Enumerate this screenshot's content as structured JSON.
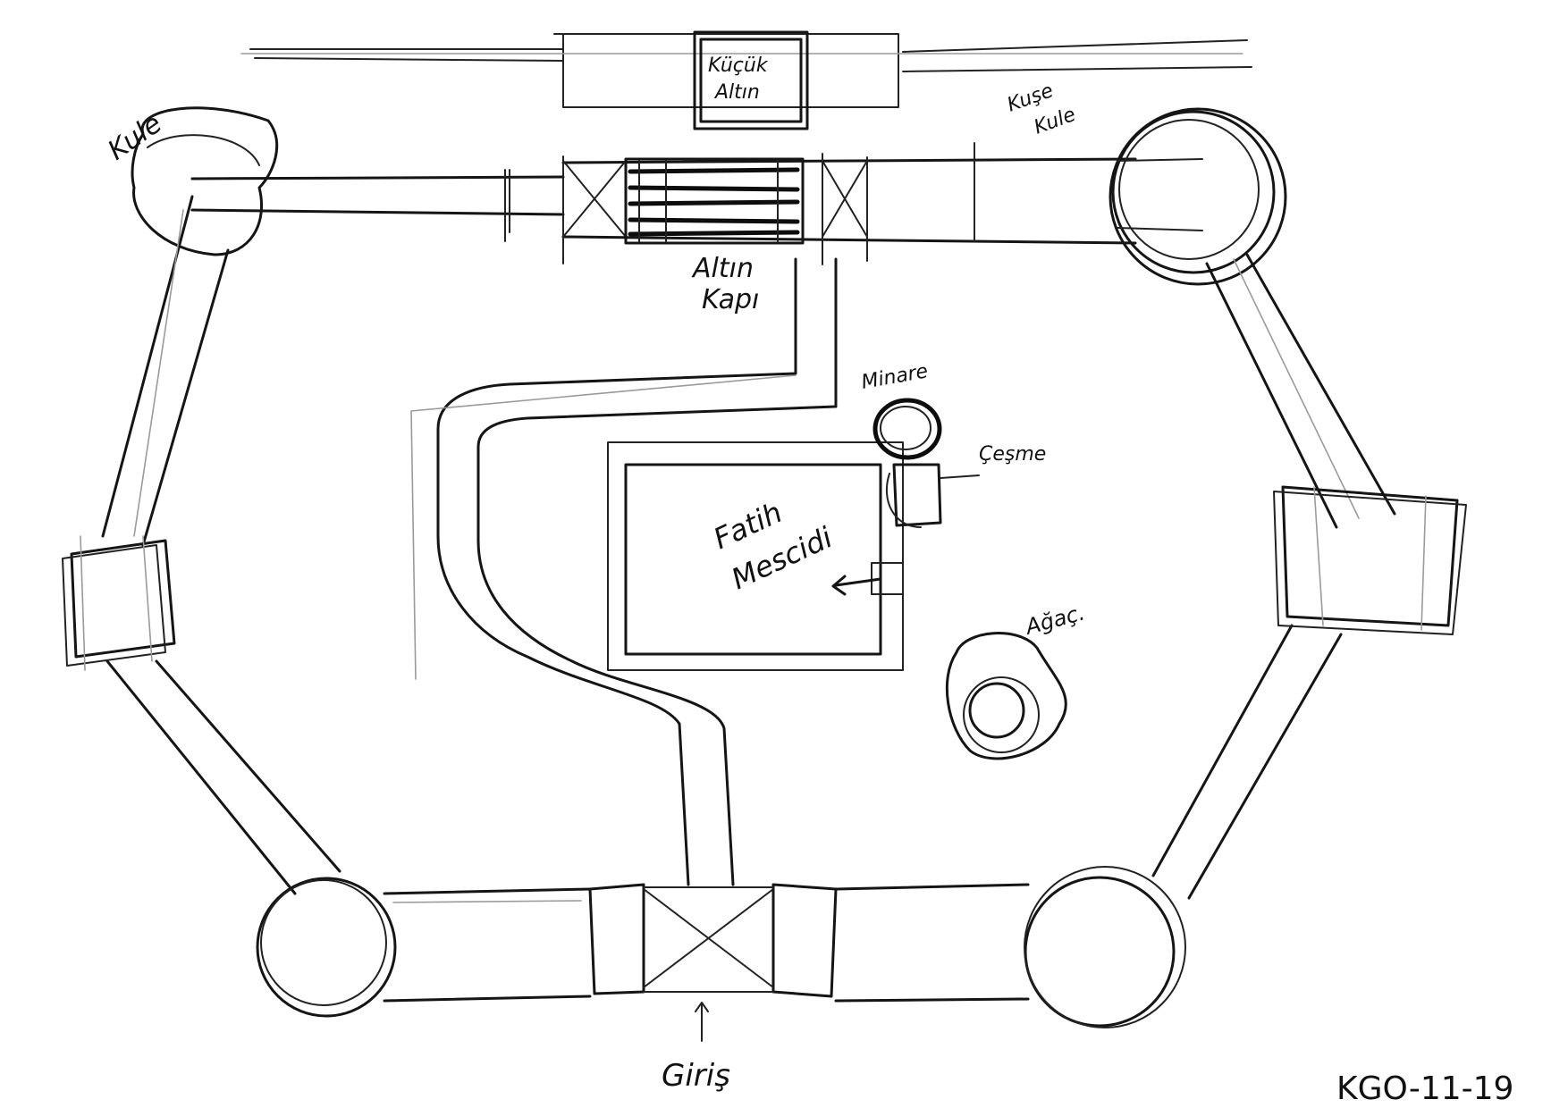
{
  "labels": {
    "kucuk_altin": [
      "Küçük",
      "Altın"
    ],
    "altin_kapi": [
      "Altın",
      "Kapı"
    ],
    "kule_left": "Kule",
    "kule_right": [
      "Kuşe",
      "Kule"
    ],
    "minare": "Minare",
    "cesme": "Çeşme",
    "fatih_mescidi": [
      "Fatih",
      "Mescidi"
    ],
    "agac": "Ağaç.",
    "giris": "Giriş",
    "code": "KGO-11-19"
  },
  "colors": {
    "ink": "#151515",
    "paper": "#ffffff"
  }
}
